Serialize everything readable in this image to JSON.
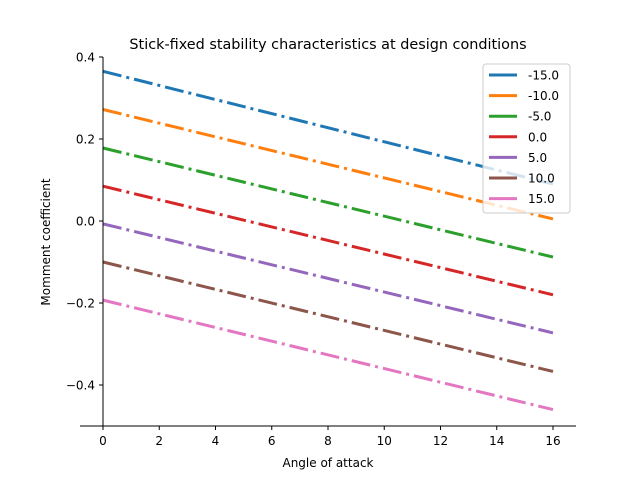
{
  "chart_data": {
    "type": "line",
    "title": "Stick-fixed stability characteristics at design conditions",
    "xlabel": "Angle of attack",
    "ylabel": "Momment coefficient",
    "xlim": [
      0,
      16
    ],
    "ylim": [
      -0.5,
      0.4
    ],
    "xticks": [
      0,
      2,
      4,
      6,
      8,
      10,
      12,
      14,
      16
    ],
    "yticks": [
      -0.4,
      -0.2,
      0.0,
      0.2,
      0.4
    ],
    "ytick_labels": [
      "−0.4",
      "−0.2",
      "0.0",
      "0.2",
      "0.4"
    ],
    "line_style": "dash-dot",
    "grid": false,
    "legend_position": "top-right",
    "series": [
      {
        "name": "-15.0",
        "color": "#1f77b4",
        "x": [
          0,
          16
        ],
        "y": [
          0.365,
          0.09
        ]
      },
      {
        "name": "-10.0",
        "color": "#ff7f0e",
        "x": [
          0,
          16
        ],
        "y": [
          0.272,
          0.005
        ]
      },
      {
        "name": "-5.0",
        "color": "#2ca02c",
        "x": [
          0,
          16
        ],
        "y": [
          0.178,
          -0.088
        ]
      },
      {
        "name": "0.0",
        "color": "#d62728",
        "x": [
          0,
          16
        ],
        "y": [
          0.085,
          -0.18
        ]
      },
      {
        "name": "5.0",
        "color": "#9467bd",
        "x": [
          0,
          16
        ],
        "y": [
          -0.007,
          -0.273
        ]
      },
      {
        "name": "10.0",
        "color": "#8c564b",
        "x": [
          0,
          16
        ],
        "y": [
          -0.1,
          -0.367
        ]
      },
      {
        "name": "15.0",
        "color": "#e377c2",
        "x": [
          0,
          16
        ],
        "y": [
          -0.193,
          -0.46
        ]
      }
    ]
  }
}
